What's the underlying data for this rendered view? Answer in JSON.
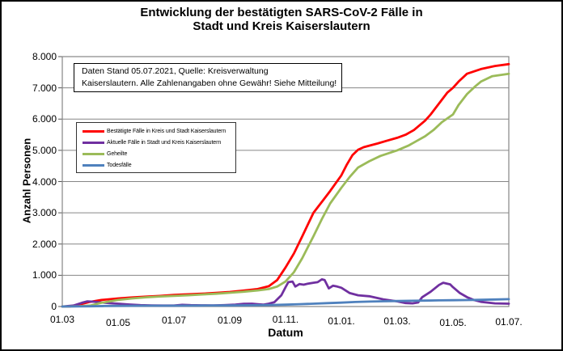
{
  "title": {
    "line1": "Entwicklung der bestätigten SARS-CoV-2 Fälle in",
    "line2": "Stadt und Kreis Kaiserslautern"
  },
  "annotation": {
    "line1": "Daten Stand 05.07.2021, Quelle: Kreisverwaltung",
    "line2": "Kaiserslautern. Alle Zahlenangaben ohne Gewähr! Siehe Mitteilung!"
  },
  "y_axis": {
    "title": "Anzahl Personen"
  },
  "x_axis": {
    "title": "Datum"
  },
  "legend": {
    "items": [
      {
        "label": "Bestätigte Fälle in Kreis und Stadt Kaiserslautern",
        "color": "#FF0000"
      },
      {
        "label": "Aktuelle Fälle in Stadt und Kreis Kaiserslautern",
        "color": "#7030A0"
      },
      {
        "label": "Geheilte",
        "color": "#9BBB59"
      },
      {
        "label": "Todesfälle",
        "color": "#4F81BD"
      }
    ]
  },
  "colors": {
    "grid": "#868686",
    "plot_border": "#868686",
    "tick_mark": "#555555"
  },
  "chart_data": {
    "type": "line",
    "title": "Entwicklung der bestätigten SARS-CoV-2 Fälle in Stadt und Kreis Kaiserslautern",
    "xlabel": "Datum",
    "ylabel": "Anzahl Personen",
    "x_unit": "Monate seit 01.03.2020",
    "xlim": [
      0,
      16
    ],
    "ylim": [
      0,
      8000
    ],
    "grid": "horizontal every 1000",
    "legend_position": "inside upper-left",
    "x_tick_months": [
      0,
      2,
      4,
      6,
      8,
      10,
      12,
      14,
      16
    ],
    "x_tick_labels": [
      "01.03",
      "01.05",
      "01.07",
      "01.09",
      "01.11.",
      "01.01.",
      "01.03.",
      "01.05.",
      "01.07."
    ],
    "y_tick_values": [
      0,
      1000,
      2000,
      3000,
      4000,
      5000,
      6000,
      7000,
      8000
    ],
    "y_tick_labels": [
      "0",
      "1.000",
      "2.000",
      "3.000",
      "4.000",
      "5.000",
      "6.000",
      "7.000",
      "8.000"
    ],
    "series": [
      {
        "name": "Bestätigte Fälle in Kreis und Stadt Kaiserslautern",
        "color": "#FF0000",
        "points": [
          [
            0,
            0
          ],
          [
            0.3,
            5
          ],
          [
            0.6,
            60
          ],
          [
            1,
            150
          ],
          [
            1.4,
            210
          ],
          [
            2,
            260
          ],
          [
            2.5,
            290
          ],
          [
            3,
            315
          ],
          [
            3.5,
            340
          ],
          [
            4,
            370
          ],
          [
            4.5,
            390
          ],
          [
            5,
            410
          ],
          [
            5.5,
            435
          ],
          [
            6,
            465
          ],
          [
            6.5,
            510
          ],
          [
            7,
            560
          ],
          [
            7.4,
            650
          ],
          [
            7.7,
            850
          ],
          [
            8,
            1250
          ],
          [
            8.3,
            1700
          ],
          [
            8.6,
            2250
          ],
          [
            9,
            3000
          ],
          [
            9.3,
            3350
          ],
          [
            9.6,
            3700
          ],
          [
            10,
            4200
          ],
          [
            10.2,
            4550
          ],
          [
            10.4,
            4850
          ],
          [
            10.6,
            5020
          ],
          [
            10.8,
            5100
          ],
          [
            11,
            5150
          ],
          [
            11.3,
            5220
          ],
          [
            11.6,
            5300
          ],
          [
            12,
            5400
          ],
          [
            12.3,
            5500
          ],
          [
            12.6,
            5650
          ],
          [
            13,
            5950
          ],
          [
            13.2,
            6150
          ],
          [
            13.5,
            6500
          ],
          [
            13.8,
            6850
          ],
          [
            14,
            7000
          ],
          [
            14.2,
            7200
          ],
          [
            14.5,
            7450
          ],
          [
            15,
            7600
          ],
          [
            15.5,
            7700
          ],
          [
            16,
            7760
          ]
        ]
      },
      {
        "name": "Aktuelle Fälle in Stadt und Kreis Kaiserslautern",
        "color": "#7030A0",
        "points": [
          [
            0,
            0
          ],
          [
            0.4,
            30
          ],
          [
            0.7,
            120
          ],
          [
            0.9,
            165
          ],
          [
            1.1,
            155
          ],
          [
            1.4,
            130
          ],
          [
            1.7,
            105
          ],
          [
            2,
            90
          ],
          [
            2.4,
            65
          ],
          [
            2.8,
            45
          ],
          [
            3.2,
            35
          ],
          [
            3.6,
            30
          ],
          [
            4,
            30
          ],
          [
            4.3,
            55
          ],
          [
            4.6,
            45
          ],
          [
            5,
            40
          ],
          [
            5.4,
            35
          ],
          [
            5.8,
            45
          ],
          [
            6.2,
            60
          ],
          [
            6.5,
            85
          ],
          [
            6.8,
            90
          ],
          [
            7,
            75
          ],
          [
            7.2,
            60
          ],
          [
            7.4,
            90
          ],
          [
            7.6,
            140
          ],
          [
            7.85,
            360
          ],
          [
            8,
            620
          ],
          [
            8.1,
            780
          ],
          [
            8.25,
            800
          ],
          [
            8.35,
            640
          ],
          [
            8.5,
            720
          ],
          [
            8.65,
            700
          ],
          [
            8.8,
            730
          ],
          [
            9,
            760
          ],
          [
            9.15,
            780
          ],
          [
            9.3,
            870
          ],
          [
            9.4,
            850
          ],
          [
            9.55,
            580
          ],
          [
            9.7,
            665
          ],
          [
            9.85,
            640
          ],
          [
            10,
            600
          ],
          [
            10.3,
            430
          ],
          [
            10.6,
            360
          ],
          [
            11,
            330
          ],
          [
            11.5,
            230
          ],
          [
            12,
            165
          ],
          [
            12.3,
            112
          ],
          [
            12.55,
            100
          ],
          [
            12.75,
            130
          ],
          [
            12.9,
            300
          ],
          [
            13.2,
            475
          ],
          [
            13.5,
            690
          ],
          [
            13.65,
            760
          ],
          [
            13.9,
            710
          ],
          [
            14,
            620
          ],
          [
            14.25,
            430
          ],
          [
            14.5,
            300
          ],
          [
            14.75,
            210
          ],
          [
            15,
            150
          ],
          [
            15.5,
            100
          ],
          [
            16,
            90
          ]
        ]
      },
      {
        "name": "Geheilte",
        "color": "#9BBB59",
        "points": [
          [
            0,
            0
          ],
          [
            0.6,
            10
          ],
          [
            1,
            30
          ],
          [
            1.4,
            120
          ],
          [
            2,
            210
          ],
          [
            2.5,
            260
          ],
          [
            3,
            295
          ],
          [
            3.5,
            320
          ],
          [
            4,
            340
          ],
          [
            4.5,
            360
          ],
          [
            5,
            385
          ],
          [
            5.5,
            410
          ],
          [
            6,
            440
          ],
          [
            6.5,
            475
          ],
          [
            7,
            515
          ],
          [
            7.4,
            560
          ],
          [
            7.7,
            640
          ],
          [
            8,
            800
          ],
          [
            8.3,
            1100
          ],
          [
            8.6,
            1550
          ],
          [
            9,
            2250
          ],
          [
            9.3,
            2800
          ],
          [
            9.6,
            3300
          ],
          [
            10,
            3800
          ],
          [
            10.3,
            4150
          ],
          [
            10.6,
            4450
          ],
          [
            11,
            4650
          ],
          [
            11.4,
            4820
          ],
          [
            12,
            5000
          ],
          [
            12.4,
            5150
          ],
          [
            12.7,
            5300
          ],
          [
            13,
            5450
          ],
          [
            13.3,
            5650
          ],
          [
            13.6,
            5900
          ],
          [
            14,
            6150
          ],
          [
            14.2,
            6450
          ],
          [
            14.5,
            6800
          ],
          [
            14.8,
            7050
          ],
          [
            15,
            7200
          ],
          [
            15.4,
            7370
          ],
          [
            16,
            7450
          ]
        ]
      },
      {
        "name": "Todesfälle",
        "color": "#4F81BD",
        "points": [
          [
            0,
            0
          ],
          [
            0.5,
            2
          ],
          [
            1,
            8
          ],
          [
            1.5,
            15
          ],
          [
            2,
            20
          ],
          [
            3,
            25
          ],
          [
            4,
            27
          ],
          [
            5,
            30
          ],
          [
            6,
            34
          ],
          [
            7,
            42
          ],
          [
            7.5,
            50
          ],
          [
            8,
            60
          ],
          [
            8.5,
            75
          ],
          [
            9,
            90
          ],
          [
            9.5,
            110
          ],
          [
            10,
            125
          ],
          [
            10.5,
            145
          ],
          [
            11,
            158
          ],
          [
            11.5,
            168
          ],
          [
            12,
            176
          ],
          [
            12.5,
            183
          ],
          [
            13,
            190
          ],
          [
            13.5,
            197
          ],
          [
            14,
            203
          ],
          [
            14.5,
            208
          ],
          [
            15,
            215
          ],
          [
            15.5,
            225
          ],
          [
            16,
            235
          ]
        ]
      }
    ]
  }
}
